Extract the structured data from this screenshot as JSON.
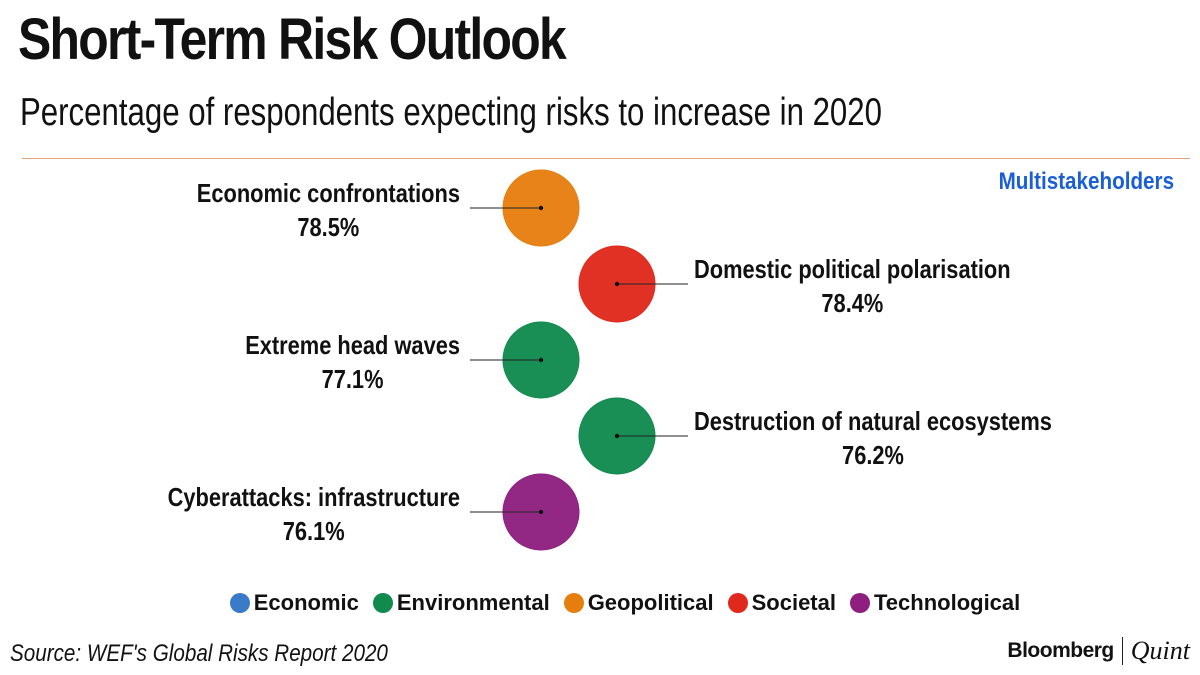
{
  "header": {
    "title": "Short-Term Risk Outlook",
    "subtitle": "Percentage of respondents expecting risks to increase in 2020",
    "view_label": "Multistakeholders"
  },
  "colors": {
    "Economic": "#3a7bc8",
    "Environmental": "#118a4e",
    "Geopolitical": "#e67e0f",
    "Societal": "#e0291c",
    "Technological": "#8e1f7e",
    "rule": "#e2a27a",
    "view_label": "#1a5fd6"
  },
  "chart_data": {
    "type": "scatter",
    "title": "Short-Term Risk Outlook",
    "subtitle": "Percentage of respondents expecting risks to increase in 2020",
    "unit": "%",
    "series": [
      {
        "name": "Economic confrontations",
        "category": "Geopolitical",
        "value": 78.5,
        "value_label": "78.5%",
        "label_side": "left"
      },
      {
        "name": "Domestic political polarisation",
        "category": "Societal",
        "value": 78.4,
        "value_label": "78.4%",
        "label_side": "right"
      },
      {
        "name": "Extreme head waves",
        "category": "Environmental",
        "value": 77.1,
        "value_label": "77.1%",
        "label_side": "left"
      },
      {
        "name": "Destruction of natural ecosystems",
        "category": "Environmental",
        "value": 76.2,
        "value_label": "76.2%",
        "label_side": "right"
      },
      {
        "name": "Cyberattacks: infrastructure",
        "category": "Technological",
        "value": 76.1,
        "value_label": "76.1%",
        "label_side": "left"
      }
    ],
    "legend": [
      "Economic",
      "Environmental",
      "Geopolitical",
      "Societal",
      "Technological"
    ],
    "legend_position": "bottom"
  },
  "footer": {
    "source": "Source: WEF's Global Risks Report 2020",
    "brand_primary": "Bloomberg",
    "brand_secondary": "Quint"
  }
}
